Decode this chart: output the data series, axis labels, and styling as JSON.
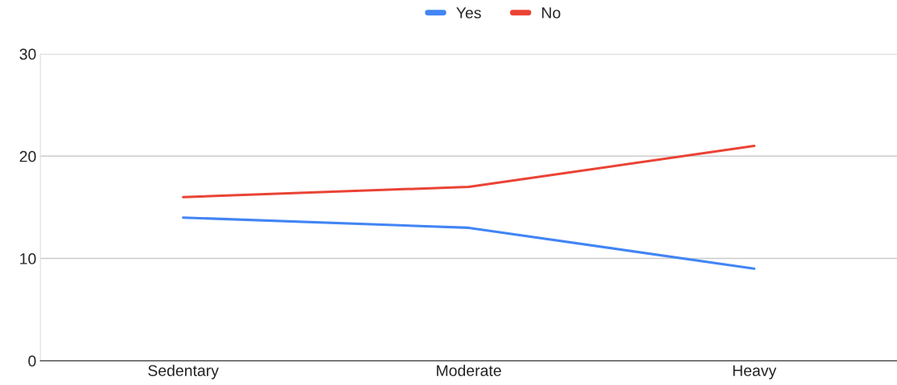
{
  "chart_data": {
    "type": "line",
    "categories": [
      "Sedentary",
      "Moderate",
      "Heavy"
    ],
    "series": [
      {
        "name": "Yes",
        "color": "#4285f4",
        "values": [
          14,
          13,
          9
        ]
      },
      {
        "name": "No",
        "color": "#ea4335",
        "values": [
          16,
          17,
          21
        ]
      }
    ],
    "ylim": [
      0,
      30
    ],
    "yticks": [
      0,
      10,
      20,
      30
    ],
    "grid": "y",
    "legend": "top",
    "marker": "none",
    "line_style": "solid"
  }
}
